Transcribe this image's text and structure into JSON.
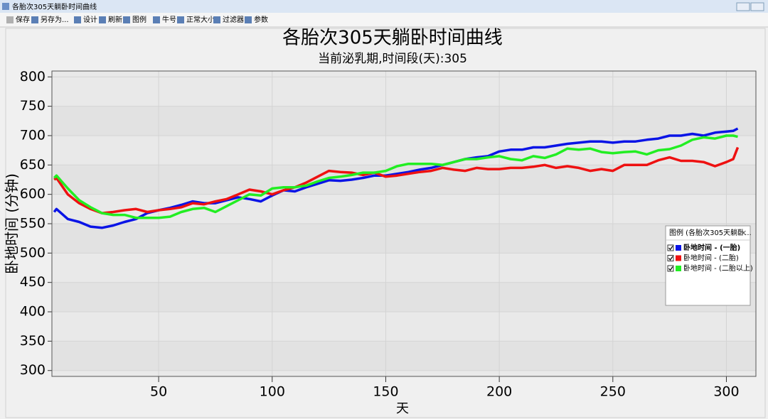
{
  "window": {
    "title": "各胎次305天躺卧时间曲线"
  },
  "toolbar": [
    "保存",
    "另存为...",
    "设计",
    "刷新",
    "图例",
    "牛号",
    "正常大小",
    "过滤器",
    "参数"
  ],
  "chart_data": {
    "type": "line",
    "title": "各胎次305天躺卧时间曲线",
    "subtitle": "当前泌乳期,时间段(天):305",
    "x_label": "天",
    "y_label": "卧地时间 (分钟)",
    "x": [
      4,
      5,
      10,
      15,
      20,
      25,
      30,
      35,
      40,
      45,
      50,
      55,
      60,
      65,
      70,
      75,
      80,
      85,
      90,
      95,
      100,
      105,
      110,
      115,
      120,
      125,
      130,
      135,
      140,
      145,
      150,
      155,
      160,
      165,
      170,
      175,
      180,
      185,
      190,
      195,
      200,
      205,
      210,
      215,
      220,
      225,
      230,
      235,
      240,
      245,
      250,
      255,
      260,
      265,
      270,
      275,
      280,
      285,
      290,
      295,
      300,
      303,
      305
    ],
    "series": [
      {
        "name": "卧地时间 - (一胎)",
        "color": "#0a14e6",
        "values": [
          570,
          575,
          558,
          553,
          545,
          543,
          547,
          553,
          558,
          568,
          573,
          577,
          582,
          588,
          585,
          585,
          590,
          595,
          592,
          588,
          598,
          607,
          605,
          612,
          618,
          624,
          623,
          625,
          628,
          632,
          632,
          635,
          638,
          642,
          645,
          650,
          655,
          660,
          663,
          665,
          673,
          676,
          676,
          680,
          680,
          683,
          686,
          688,
          690,
          690,
          688,
          690,
          690,
          693,
          695,
          700,
          700,
          703,
          700,
          705,
          707,
          708,
          712
        ]
      },
      {
        "name": "卧地时间 - (二胎)",
        "color": "#ee1111",
        "values": [
          625,
          628,
          600,
          585,
          575,
          568,
          570,
          573,
          575,
          570,
          573,
          575,
          578,
          585,
          583,
          588,
          592,
          600,
          608,
          605,
          600,
          607,
          612,
          620,
          630,
          640,
          638,
          637,
          633,
          637,
          630,
          632,
          635,
          638,
          640,
          645,
          642,
          640,
          645,
          643,
          643,
          645,
          645,
          647,
          650,
          645,
          648,
          645,
          640,
          643,
          640,
          650,
          650,
          650,
          658,
          663,
          657,
          657,
          655,
          648,
          655,
          660,
          680
        ]
      },
      {
        "name": "卧地时间 - (二胎以上)",
        "color": "#22ee22",
        "values": [
          628,
          632,
          610,
          590,
          578,
          568,
          565,
          565,
          560,
          560,
          560,
          562,
          570,
          575,
          577,
          570,
          580,
          590,
          600,
          598,
          610,
          612,
          612,
          615,
          622,
          628,
          630,
          633,
          637,
          637,
          640,
          648,
          652,
          652,
          652,
          650,
          655,
          660,
          660,
          663,
          665,
          660,
          658,
          665,
          662,
          668,
          678,
          676,
          678,
          672,
          670,
          672,
          673,
          668,
          675,
          677,
          683,
          693,
          697,
          695,
          700,
          700,
          698
        ]
      }
    ],
    "xlim": [
      3,
      313
    ],
    "ylim": [
      290,
      810
    ],
    "xticks": [
      50,
      100,
      150,
      200,
      250,
      300
    ],
    "yticks": [
      300,
      350,
      400,
      450,
      500,
      550,
      600,
      650,
      700,
      750,
      800
    ],
    "grid": true,
    "legend": {
      "title": "图例 (各胎次305天躺卧...",
      "position": "right"
    }
  }
}
